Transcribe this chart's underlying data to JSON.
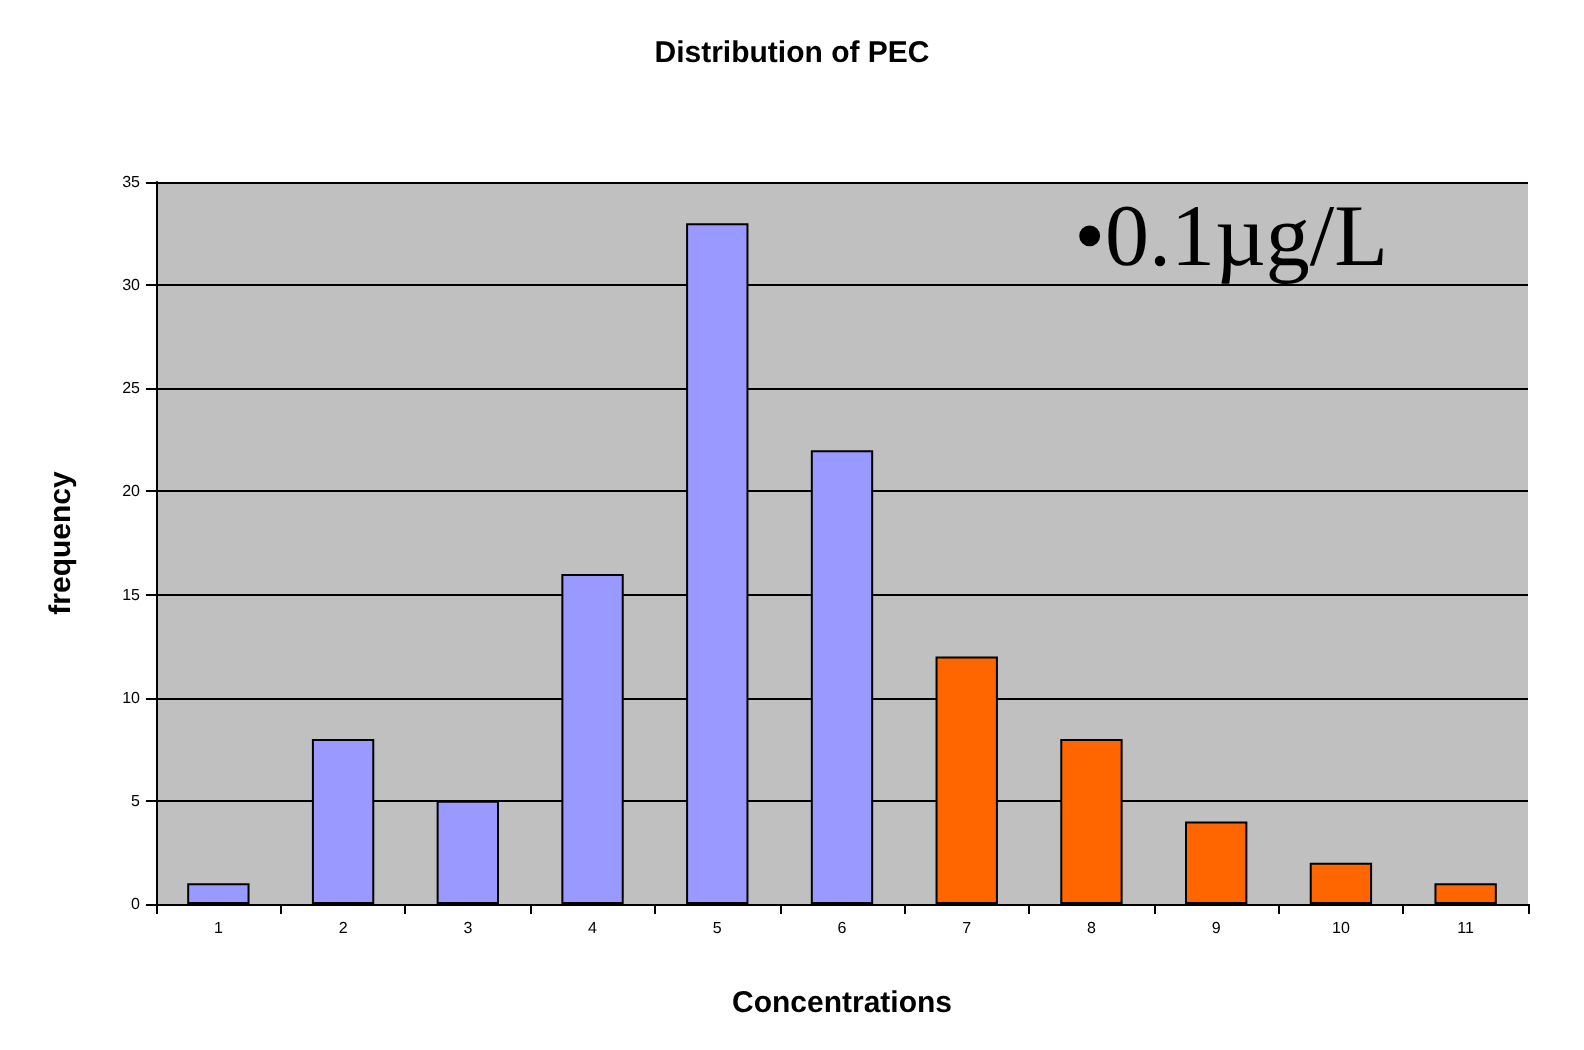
{
  "chart_data": {
    "type": "bar",
    "title": "Distribution of PEC",
    "xlabel": "Concentrations",
    "ylabel": "frequency",
    "categories": [
      "1",
      "2",
      "3",
      "4",
      "5",
      "6",
      "7",
      "8",
      "9",
      "10",
      "11"
    ],
    "values": [
      1,
      8,
      5,
      16,
      33,
      22,
      12,
      8,
      4,
      2,
      1
    ],
    "colors": [
      "#9999ff",
      "#9999ff",
      "#9999ff",
      "#9999ff",
      "#9999ff",
      "#9999ff",
      "#ff6600",
      "#ff6600",
      "#ff6600",
      "#ff6600",
      "#ff6600"
    ],
    "ylim": [
      0,
      35
    ],
    "yticks": [
      0,
      5,
      10,
      15,
      20,
      25,
      30,
      35
    ],
    "grid": "y",
    "annotations": [
      "•0.1µg/L"
    ]
  }
}
